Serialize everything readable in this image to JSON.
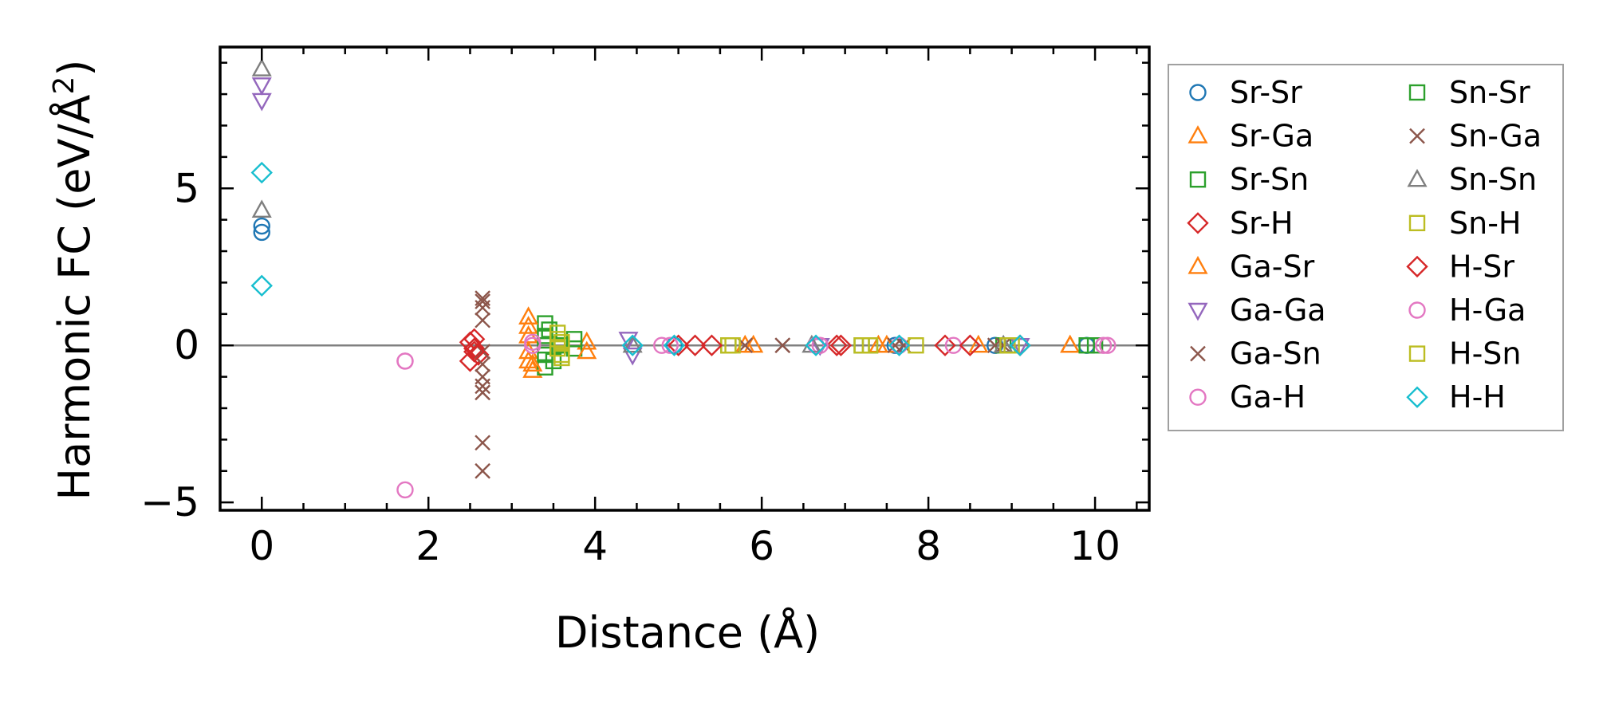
{
  "chart_data": {
    "type": "scatter",
    "title": "",
    "xlabel": "Distance (Å)",
    "ylabel_main": "Harmonic FC (eV/Å",
    "ylabel_sup": "2",
    "ylabel_end": ")",
    "xlim": [
      -0.5,
      10.65
    ],
    "ylim": [
      -5.25,
      9.5
    ],
    "xticks": [
      0,
      2,
      4,
      6,
      8,
      10
    ],
    "xtick_labels": [
      "0",
      "2",
      "4",
      "6",
      "8",
      "10"
    ],
    "yticks": [
      -5,
      0,
      5
    ],
    "ytick_labels": [
      "−5",
      "0",
      "5"
    ],
    "zero_line": true,
    "legend_position": "outside-right",
    "series": [
      {
        "name": "Sr-Sr",
        "marker": "circle",
        "color": "#1f77b4",
        "points": [
          [
            0,
            3.6
          ],
          [
            0,
            3.8
          ],
          [
            4.95,
            0
          ],
          [
            6.65,
            0
          ],
          [
            7.6,
            0
          ],
          [
            8.8,
            0
          ],
          [
            9.9,
            0
          ]
        ]
      },
      {
        "name": "Sr-Ga",
        "marker": "triangle-up",
        "color": "#ff7f0e",
        "points": [
          [
            3.2,
            0.6
          ],
          [
            3.2,
            0.3
          ],
          [
            3.2,
            -0.2
          ],
          [
            3.2,
            -0.5
          ],
          [
            3.25,
            -0.8
          ],
          [
            3.9,
            0.1
          ],
          [
            5.8,
            0
          ],
          [
            7.4,
            0
          ],
          [
            8.6,
            0
          ],
          [
            9.7,
            0
          ]
        ]
      },
      {
        "name": "Sr-Sn",
        "marker": "square",
        "color": "#2ca02c",
        "points": [
          [
            3.4,
            0.7
          ],
          [
            3.4,
            0.3
          ],
          [
            3.4,
            0
          ],
          [
            3.4,
            -0.3
          ],
          [
            3.4,
            -0.7
          ],
          [
            3.6,
            0
          ],
          [
            3.75,
            -0.1
          ],
          [
            7.2,
            0
          ],
          [
            8.9,
            0
          ],
          [
            10,
            0
          ]
        ]
      },
      {
        "name": "Sr-H",
        "marker": "diamond",
        "color": "#d62728",
        "points": [
          [
            2.5,
            0.1
          ],
          [
            2.55,
            -0.1
          ],
          [
            2.6,
            -0.3
          ],
          [
            2.5,
            -0.5
          ],
          [
            5.2,
            0
          ],
          [
            6.9,
            0
          ],
          [
            8.2,
            0
          ],
          [
            9.1,
            0
          ]
        ]
      },
      {
        "name": "Ga-Sr",
        "marker": "triangle-up",
        "color": "#ff7f0e",
        "points": [
          [
            3.2,
            0.9
          ],
          [
            3.25,
            -0.6
          ],
          [
            3.9,
            -0.2
          ],
          [
            5.9,
            0
          ],
          [
            7.5,
            0
          ],
          [
            9.7,
            0
          ]
        ]
      },
      {
        "name": "Ga-Ga",
        "marker": "triangle-down",
        "color": "#9467bd",
        "points": [
          [
            0,
            8.3
          ],
          [
            0,
            7.8
          ],
          [
            4.4,
            0.2
          ],
          [
            4.45,
            -0.3
          ],
          [
            6.7,
            0
          ],
          [
            9.1,
            0
          ]
        ]
      },
      {
        "name": "Ga-Sn",
        "marker": "x",
        "color": "#8c564b",
        "points": [
          [
            2.65,
            1.5
          ],
          [
            2.65,
            1.2
          ],
          [
            2.65,
            0.8
          ],
          [
            2.65,
            -0.6
          ],
          [
            2.65,
            -1
          ],
          [
            2.65,
            -1.3
          ],
          [
            2.65,
            -1.5
          ],
          [
            2.65,
            -3.1
          ],
          [
            2.65,
            -4
          ],
          [
            5.8,
            0
          ],
          [
            6.25,
            0
          ],
          [
            7.6,
            0
          ],
          [
            8.8,
            0
          ]
        ]
      },
      {
        "name": "Ga-H",
        "marker": "circle",
        "color": "#e377c2",
        "points": [
          [
            1.72,
            -0.5
          ],
          [
            1.72,
            -4.6
          ],
          [
            3.25,
            0
          ],
          [
            4.8,
            0
          ],
          [
            6.7,
            0
          ],
          [
            8.3,
            0
          ],
          [
            10.1,
            0
          ]
        ]
      },
      {
        "name": "Sn-Sr",
        "marker": "square",
        "color": "#2ca02c",
        "points": [
          [
            3.45,
            0.5
          ],
          [
            3.5,
            -0.5
          ],
          [
            3.75,
            0.2
          ],
          [
            5.6,
            0
          ],
          [
            7.3,
            0
          ],
          [
            9.9,
            0
          ]
        ]
      },
      {
        "name": "Sn-Ga",
        "marker": "x",
        "color": "#8c564b",
        "points": [
          [
            2.65,
            1.4
          ],
          [
            2.65,
            -0.2
          ],
          [
            2.65,
            -1.5
          ],
          [
            6.25,
            0
          ],
          [
            7.7,
            0
          ],
          [
            8.9,
            0
          ]
        ]
      },
      {
        "name": "Sn-Sn",
        "marker": "triangle-up",
        "color": "#7f7f7f",
        "points": [
          [
            0,
            8.8
          ],
          [
            0,
            4.3
          ],
          [
            4.45,
            0
          ],
          [
            6.6,
            0
          ],
          [
            8.9,
            0
          ]
        ]
      },
      {
        "name": "Sn-H",
        "marker": "square",
        "color": "#bcbd22",
        "points": [
          [
            3.55,
            0.4
          ],
          [
            3.55,
            0.2
          ],
          [
            3.55,
            -0.1
          ],
          [
            3.6,
            -0.4
          ],
          [
            5.6,
            0
          ],
          [
            7.2,
            0
          ],
          [
            7.85,
            0
          ],
          [
            9,
            0
          ]
        ]
      },
      {
        "name": "H-Sr",
        "marker": "diamond",
        "color": "#d62728",
        "points": [
          [
            2.55,
            0.2
          ],
          [
            2.55,
            -0.2
          ],
          [
            5,
            0
          ],
          [
            5.4,
            0
          ],
          [
            6.95,
            0
          ],
          [
            8.5,
            0
          ]
        ]
      },
      {
        "name": "H-Ga",
        "marker": "circle",
        "color": "#e377c2",
        "points": [
          [
            1.72,
            -0.5
          ],
          [
            3.25,
            0.1
          ],
          [
            4.9,
            0
          ],
          [
            6.65,
            0
          ],
          [
            7.65,
            0
          ],
          [
            10.15,
            0
          ]
        ]
      },
      {
        "name": "H-Sn",
        "marker": "square",
        "color": "#bcbd22",
        "points": [
          [
            3.6,
            0.1
          ],
          [
            3.6,
            -0.3
          ],
          [
            5.65,
            0
          ],
          [
            7.3,
            0
          ],
          [
            8.95,
            0
          ]
        ]
      },
      {
        "name": "H-H",
        "marker": "diamond",
        "color": "#17becf",
        "points": [
          [
            0,
            5.5
          ],
          [
            0,
            1.9
          ],
          [
            4.45,
            0
          ],
          [
            4.95,
            0
          ],
          [
            6.65,
            0
          ],
          [
            7.65,
            0
          ],
          [
            9.1,
            0
          ]
        ]
      }
    ]
  }
}
